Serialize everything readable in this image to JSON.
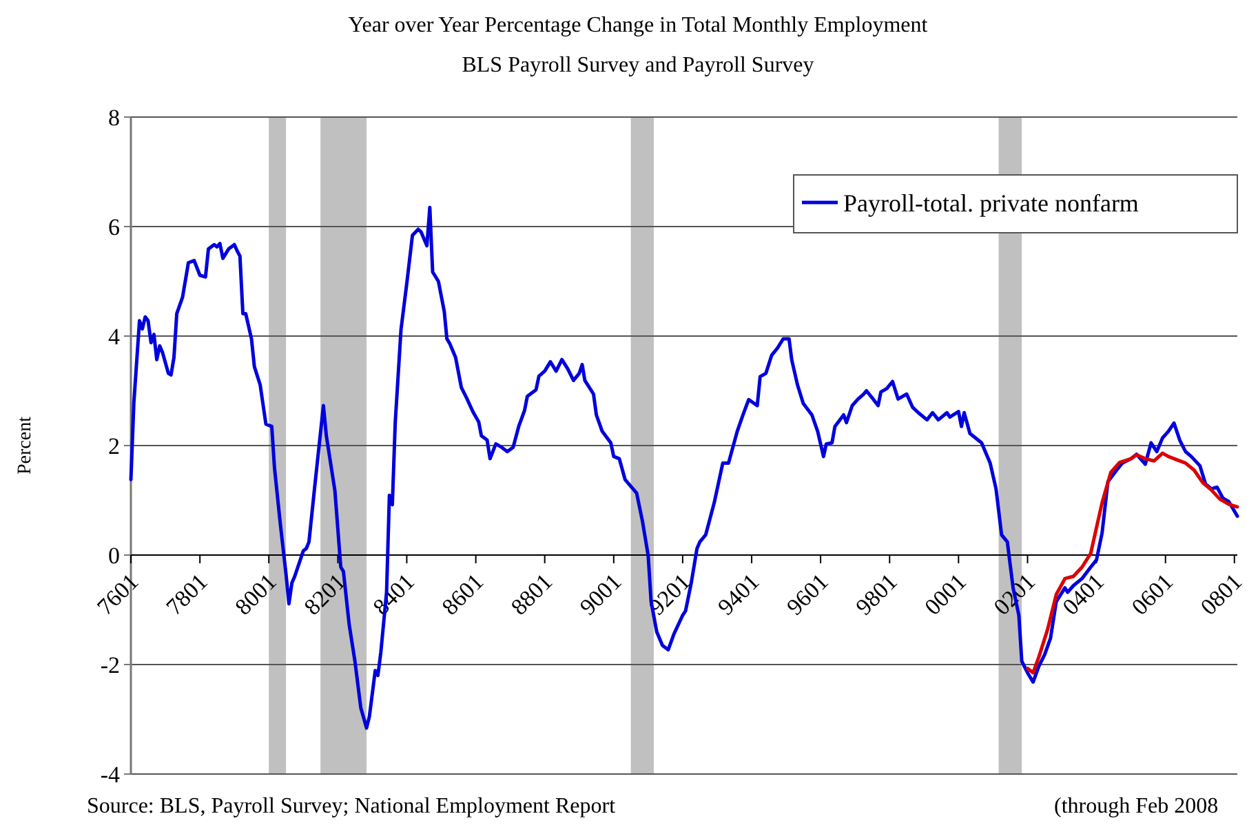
{
  "chart_data": {
    "type": "line",
    "title": "Year over Year Percentage Change in Total Monthly Employment",
    "subtitle": "BLS Payroll Survey and Payroll Survey",
    "ylabel": "Percent",
    "annotations": [
      "Source: BLS, Payroll Survey; National Employment Report",
      "(through Feb 2008"
    ],
    "xlim": [
      "1976-01",
      "2008-02"
    ],
    "xticks": [
      {
        "value": "1976-01",
        "label": "7601"
      },
      {
        "value": "1978-01",
        "label": "7801"
      },
      {
        "value": "1980-01",
        "label": "8001"
      },
      {
        "value": "1982-01",
        "label": "8201"
      },
      {
        "value": "1984-01",
        "label": "8401"
      },
      {
        "value": "1986-01",
        "label": "8601"
      },
      {
        "value": "1988-01",
        "label": "8801"
      },
      {
        "value": "1990-01",
        "label": "9001"
      },
      {
        "value": "1992-01",
        "label": "9201"
      },
      {
        "value": "1994-01",
        "label": "9401"
      },
      {
        "value": "1996-01",
        "label": "9601"
      },
      {
        "value": "1998-01",
        "label": "9801"
      },
      {
        "value": "2000-01",
        "label": "0001"
      },
      {
        "value": "2002-01",
        "label": "0201"
      },
      {
        "value": "2004-01",
        "label": "0401"
      },
      {
        "value": "2006-01",
        "label": "0601"
      },
      {
        "value": "2008-01",
        "label": "0801"
      }
    ],
    "ylim": [
      -4,
      8
    ],
    "yticks": [
      -4,
      -2,
      0,
      2,
      4,
      6,
      8
    ],
    "grid": "y",
    "legend": "top right",
    "bands": [
      {
        "axis": "x",
        "from": "1980-01",
        "to": "1980-07",
        "color": "#c0c0c0"
      },
      {
        "axis": "x",
        "from": "1981-07",
        "to": "1982-11",
        "color": "#c0c0c0"
      },
      {
        "axis": "x",
        "from": "1990-07",
        "to": "1991-03",
        "color": "#c0c0c0"
      },
      {
        "axis": "x",
        "from": "2001-03",
        "to": "2001-11",
        "color": "#c0c0c0"
      }
    ],
    "series": [
      {
        "name": "Payroll-total. private nonfarm",
        "color": "#0000dd",
        "x": [
          "1976-01",
          "1976-02",
          "1976-04",
          "1976-05",
          "1976-06",
          "1976-07",
          "1976-08",
          "1976-09",
          "1976-10",
          "1976-11",
          "1976-12",
          "1977-02",
          "1977-03",
          "1977-04",
          "1977-05",
          "1977-07",
          "1977-09",
          "1977-11",
          "1978-01",
          "1978-03",
          "1978-04",
          "1978-06",
          "1978-07",
          "1978-08",
          "1978-09",
          "1978-11",
          "1979-01",
          "1979-02",
          "1979-03",
          "1979-04",
          "1979-05",
          "1979-07",
          "1979-08",
          "1979-10",
          "1979-12",
          "1980-02",
          "1980-03",
          "1980-05",
          "1980-07",
          "1980-08",
          "1980-09",
          "1980-10",
          "1981-01",
          "1981-02",
          "1981-03",
          "1981-05",
          "1981-08",
          "1981-09",
          "1981-12",
          "1982-02",
          "1982-03",
          "1982-05",
          "1982-07",
          "1982-09",
          "1982-11",
          "1982-12",
          "1983-02",
          "1983-03",
          "1983-04",
          "1983-06",
          "1983-07",
          "1983-08",
          "1983-09",
          "1983-11",
          "1984-01",
          "1984-03",
          "1984-05",
          "1984-06",
          "1984-08",
          "1984-09",
          "1984-10",
          "1984-12",
          "1985-02",
          "1985-03",
          "1985-04",
          "1985-06",
          "1985-08",
          "1985-10",
          "1985-12",
          "1986-02",
          "1986-03",
          "1986-05",
          "1986-06",
          "1986-08",
          "1986-10",
          "1986-12",
          "1987-02",
          "1987-04",
          "1987-06",
          "1987-07",
          "1987-10",
          "1987-11",
          "1988-01",
          "1988-03",
          "1988-05",
          "1988-07",
          "1988-09",
          "1988-11",
          "1989-01",
          "1989-02",
          "1989-03",
          "1989-06",
          "1989-07",
          "1989-09",
          "1989-12",
          "1990-01",
          "1990-03",
          "1990-05",
          "1990-09",
          "1990-11",
          "1991-01",
          "1991-02",
          "1991-04",
          "1991-06",
          "1991-08",
          "1991-10",
          "1992-01",
          "1992-02",
          "1992-04",
          "1992-06",
          "1992-07",
          "1992-09",
          "1992-12",
          "1993-03",
          "1993-05",
          "1993-08",
          "1993-10",
          "1993-12",
          "1994-03",
          "1994-04",
          "1994-06",
          "1994-08",
          "1994-10",
          "1994-12",
          "1995-02",
          "1995-03",
          "1995-05",
          "1995-07",
          "1995-10",
          "1995-12",
          "1996-02",
          "1996-03",
          "1996-05",
          "1996-06",
          "1996-09",
          "1996-10",
          "1996-12",
          "1997-02",
          "1997-04",
          "1997-05",
          "1997-07",
          "1997-09",
          "1997-10",
          "1997-12",
          "1998-02",
          "1998-04",
          "1998-07",
          "1998-09",
          "1998-11",
          "1999-02",
          "1999-04",
          "1999-06",
          "1999-09",
          "1999-10",
          "2000-01",
          "2000-02",
          "2000-03",
          "2000-05",
          "2000-09",
          "2000-12",
          "2001-02",
          "2001-04",
          "2001-06",
          "2001-08",
          "2001-10",
          "2001-11",
          "2002-01",
          "2002-03",
          "2002-05",
          "2002-07",
          "2002-09",
          "2002-11",
          "2003-02",
          "2003-03",
          "2003-05",
          "2003-08",
          "2003-11",
          "2004-01",
          "2004-03",
          "2004-05",
          "2004-08",
          "2004-10",
          "2005-01",
          "2005-03",
          "2005-06",
          "2005-08",
          "2005-10",
          "2005-12",
          "2006-02",
          "2006-04",
          "2006-06",
          "2006-08",
          "2006-10",
          "2007-01",
          "2007-03",
          "2007-05",
          "2007-07",
          "2007-09",
          "2007-11",
          "2008-02"
        ],
        "values": [
          1.38,
          2.77,
          4.28,
          4.13,
          4.35,
          4.28,
          3.88,
          4.03,
          3.57,
          3.82,
          3.7,
          3.32,
          3.29,
          3.61,
          4.41,
          4.71,
          5.34,
          5.38,
          5.11,
          5.08,
          5.59,
          5.67,
          5.63,
          5.69,
          5.42,
          5.59,
          5.67,
          5.55,
          5.46,
          4.41,
          4.41,
          3.95,
          3.44,
          3.11,
          2.39,
          2.35,
          1.59,
          0.58,
          -0.35,
          -0.89,
          -0.51,
          -0.39,
          0.08,
          0.12,
          0.24,
          1.25,
          2.73,
          2.18,
          1.17,
          -0.22,
          -0.3,
          -1.27,
          -1.94,
          -2.79,
          -3.16,
          -2.95,
          -2.11,
          -2.2,
          -1.78,
          -0.68,
          1.09,
          0.92,
          2.43,
          4.12,
          4.96,
          5.84,
          5.95,
          5.9,
          5.65,
          6.35,
          5.17,
          5.0,
          4.45,
          3.95,
          3.86,
          3.61,
          3.06,
          2.85,
          2.62,
          2.43,
          2.18,
          2.1,
          1.76,
          2.03,
          1.97,
          1.89,
          1.97,
          2.35,
          2.64,
          2.9,
          3.02,
          3.27,
          3.36,
          3.53,
          3.36,
          3.57,
          3.4,
          3.19,
          3.32,
          3.48,
          3.19,
          2.94,
          2.56,
          2.26,
          2.05,
          1.8,
          1.76,
          1.38,
          1.13,
          0.62,
          -0.01,
          -0.85,
          -1.4,
          -1.65,
          -1.73,
          -1.44,
          -1.1,
          -1.02,
          -0.51,
          0.12,
          0.24,
          0.37,
          0.96,
          1.68,
          1.68,
          2.26,
          2.56,
          2.84,
          2.73,
          3.26,
          3.32,
          3.65,
          3.78,
          3.95,
          3.95,
          3.57,
          3.11,
          2.77,
          2.56,
          2.26,
          1.8,
          2.03,
          2.05,
          2.35,
          2.56,
          2.42,
          2.73,
          2.85,
          2.94,
          3.0,
          2.87,
          2.73,
          2.98,
          3.04,
          3.17,
          2.85,
          2.94,
          2.7,
          2.6,
          2.47,
          2.6,
          2.47,
          2.6,
          2.52,
          2.62,
          2.35,
          2.6,
          2.22,
          2.05,
          1.68,
          1.21,
          0.37,
          0.24,
          -0.6,
          -1.1,
          -1.94,
          -2.15,
          -2.32,
          -2.03,
          -1.82,
          -1.52,
          -0.85,
          -0.6,
          -0.68,
          -0.56,
          -0.43,
          -0.22,
          -0.09,
          0.41,
          1.34,
          1.55,
          1.68,
          1.76,
          1.84,
          1.66,
          2.05,
          1.89,
          2.14,
          2.26,
          2.41,
          2.1,
          1.89,
          1.8,
          1.63,
          1.3,
          1.21,
          1.24,
          1.04,
          0.98,
          0.71
        ]
      },
      {
        "color": "#dd0000",
        "x": [
          "2002-01",
          "2002-03",
          "2002-05",
          "2002-08",
          "2002-11",
          "2003-02",
          "2003-05",
          "2003-08",
          "2003-11",
          "2004-01",
          "2004-03",
          "2004-06",
          "2004-09",
          "2005-01",
          "2005-03",
          "2005-06",
          "2005-09",
          "2005-12",
          "2006-02",
          "2006-05",
          "2006-08",
          "2006-11",
          "2007-02",
          "2007-05",
          "2007-08",
          "2007-11",
          "2008-02"
        ],
        "values": [
          -2.07,
          -2.15,
          -1.86,
          -1.36,
          -0.72,
          -0.43,
          -0.39,
          -0.22,
          0.03,
          0.5,
          0.96,
          1.51,
          1.69,
          1.76,
          1.83,
          1.76,
          1.72,
          1.86,
          1.8,
          1.74,
          1.68,
          1.55,
          1.32,
          1.19,
          1.02,
          0.93,
          0.88
        ]
      }
    ]
  }
}
